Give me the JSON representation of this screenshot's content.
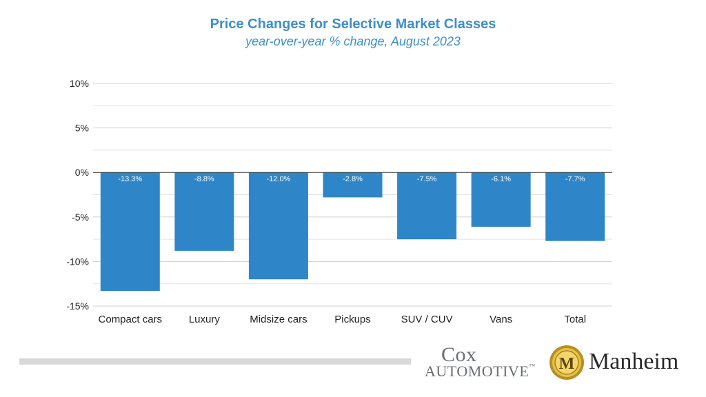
{
  "chart_data": {
    "type": "bar",
    "title": "Price Changes for Selective Market Classes",
    "subtitle": "year-over-year % change, August 2023",
    "categories": [
      "Compact cars",
      "Luxury",
      "Midsize cars",
      "Pickups",
      "SUV / CUV",
      "Vans",
      "Total"
    ],
    "values": [
      -13.3,
      -8.8,
      -12.0,
      -2.8,
      -7.5,
      -6.1,
      -7.7
    ],
    "data_labels": [
      "-13.3%",
      "-8.8%",
      "-12.0%",
      "-2.8%",
      "-7.5%",
      "-6.1%",
      "-7.7%"
    ],
    "ylim": [
      -15,
      10
    ],
    "yticks": [
      10,
      5,
      0,
      -5,
      -10,
      -15
    ],
    "ytick_labels": [
      "10%",
      "5%",
      "0%",
      "-5%",
      "-10%",
      "-15%"
    ],
    "minor_gridlines": [
      7.5,
      2.5,
      -2.5,
      -7.5,
      -12.5
    ],
    "grid": true,
    "legend": "none",
    "bar_color": "#2e86c8"
  },
  "logos": {
    "cox_top": "Cox",
    "cox_bottom": "AUTOMOTIVE",
    "cox_tm": "™",
    "manheim": "Manheim",
    "manheim_letter": "M"
  },
  "colors": {
    "title": "#3d8fc9",
    "gold": "#c9a227"
  }
}
